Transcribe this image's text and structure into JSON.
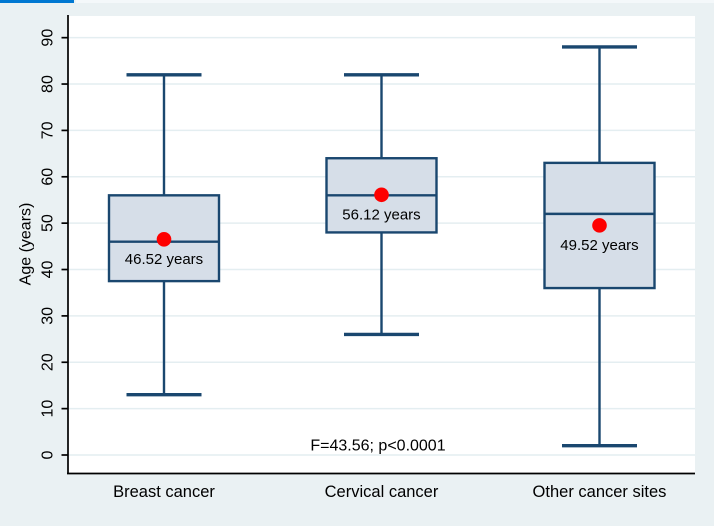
{
  "top_bar": {
    "color": "#0078d2"
  },
  "chart_data": {
    "type": "box",
    "title": "",
    "xlabel": "",
    "ylabel": "Age (years)",
    "ylim": [
      0,
      90
    ],
    "ytick_interval": 10,
    "yticks": [
      0,
      10,
      20,
      30,
      40,
      50,
      60,
      70,
      80,
      90
    ],
    "grid": true,
    "legend": "none",
    "annotation": "F=43.56; p<0.0001",
    "categories": [
      "Breast cancer",
      "Cervical cancer",
      "Other cancer sites"
    ],
    "series": [
      {
        "category": "Breast cancer",
        "whisker_low": 13,
        "q1": 37.5,
        "median": 46,
        "q3": 56,
        "whisker_high": 82,
        "mean": 46.52,
        "mean_label": "46.52 years"
      },
      {
        "category": "Cervical cancer",
        "whisker_low": 26,
        "q1": 48,
        "median": 56,
        "q3": 64,
        "whisker_high": 82,
        "mean": 56.12,
        "mean_label": "56.12 years"
      },
      {
        "category": "Other cancer sites",
        "whisker_low": 2,
        "q1": 36,
        "median": 52,
        "q3": 63,
        "whisker_high": 88,
        "mean": 49.52,
        "mean_label": "49.52 years"
      }
    ],
    "colors": {
      "page_bg": "#eaf1f3",
      "plot_bg": "#ffffff",
      "grid": "#e4eef1",
      "axis": "#000000",
      "box_fill": "#d6dee8",
      "box_stroke": "#1a476f",
      "mean_dot": "#fe0000",
      "text": "#000000"
    }
  }
}
